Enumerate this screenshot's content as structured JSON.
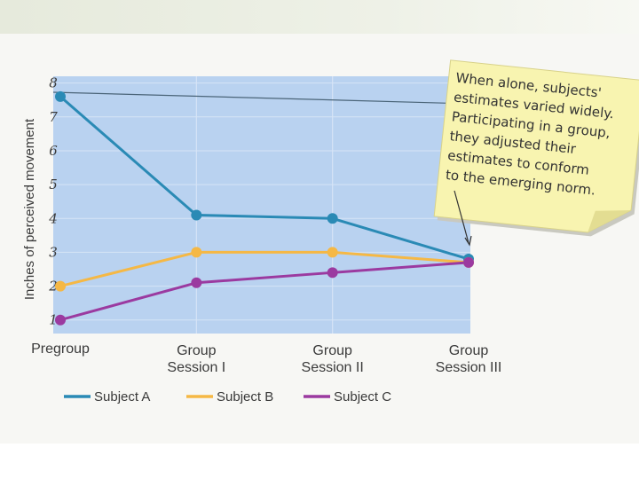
{
  "chart_data": {
    "type": "line",
    "ylabel": "Inches of perceived movement",
    "yticks": [
      1,
      2,
      3,
      4,
      5,
      6,
      7,
      8
    ],
    "ylim": [
      0.6,
      8.2
    ],
    "categories": [
      "Pregroup",
      "Group Session I",
      "Group Session II",
      "Group Session III"
    ],
    "category_lines": [
      [
        "Pregroup"
      ],
      [
        "Group",
        "Session I"
      ],
      [
        "Group",
        "Session II"
      ],
      [
        "Group",
        "Session III"
      ]
    ],
    "series": [
      {
        "name": "Subject A",
        "color": "#2a8ab5",
        "values": [
          7.6,
          4.1,
          4.0,
          2.8
        ]
      },
      {
        "name": "Subject B",
        "color": "#f5b845",
        "values": [
          2.0,
          3.0,
          3.0,
          2.7
        ]
      },
      {
        "name": "Subject C",
        "color": "#9b3aa0",
        "values": [
          1.0,
          2.1,
          2.4,
          2.7
        ]
      }
    ],
    "annotation": [
      "When alone, subjects'",
      "estimates varied widely.",
      "Participating in a group,",
      "they adjusted their",
      "estimates to conform",
      "to the emerging norm."
    ],
    "grid": true,
    "legend_position": "bottom"
  }
}
